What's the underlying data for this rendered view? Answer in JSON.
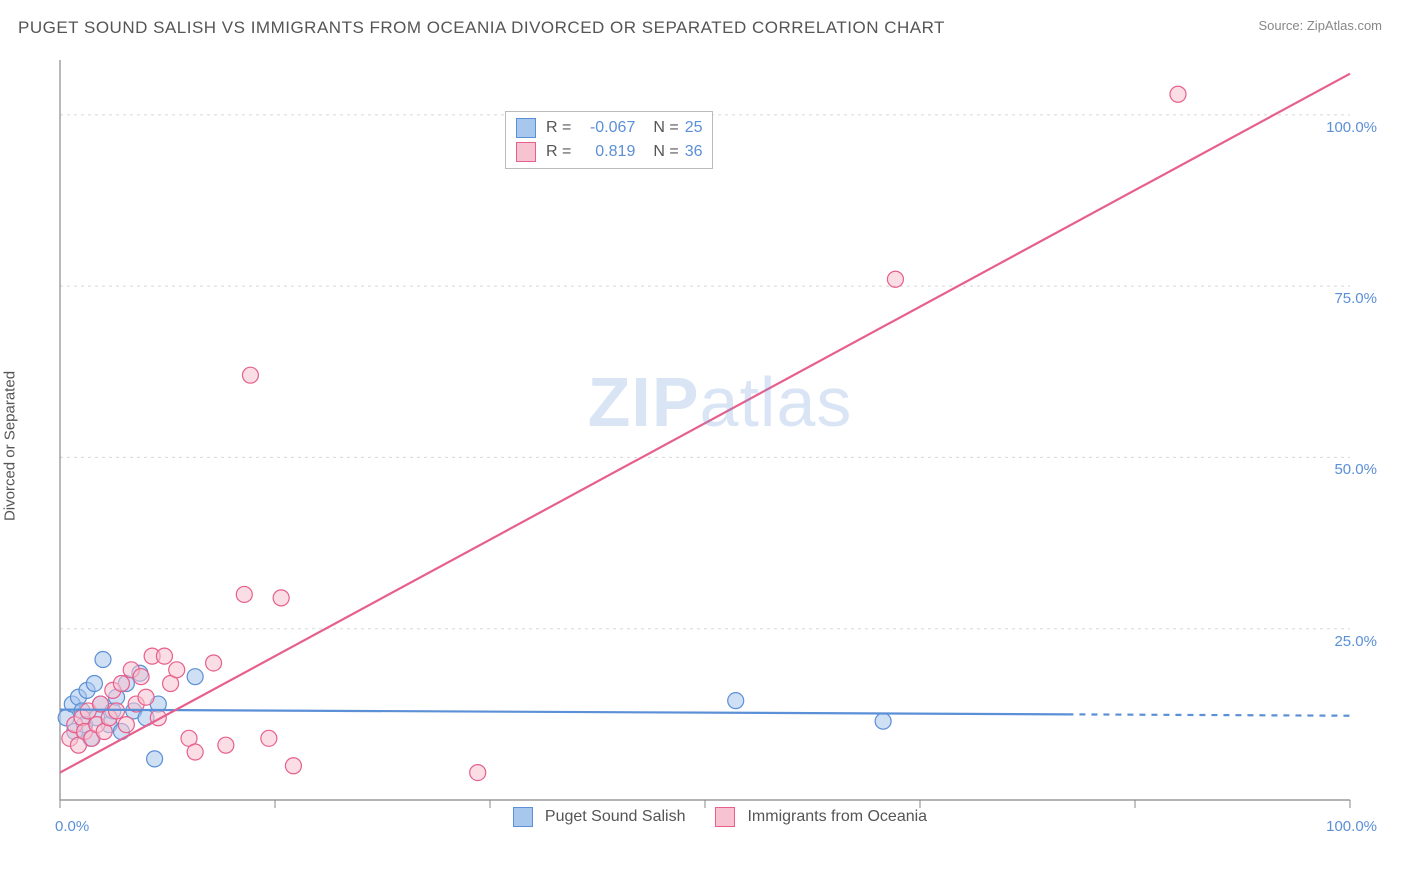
{
  "title": "PUGET SOUND SALISH VS IMMIGRANTS FROM OCEANIA DIVORCED OR SEPARATED CORRELATION CHART",
  "source": "Source: ZipAtlas.com",
  "y_axis_label": "Divorced or Separated",
  "watermark_bold": "ZIP",
  "watermark_light": "atlas",
  "chart": {
    "type": "scatter",
    "xlim": [
      0,
      105
    ],
    "ylim": [
      0,
      108
    ],
    "x_ticks": [
      0,
      100
    ],
    "x_tick_labels": [
      "0.0%",
      "100.0%"
    ],
    "y_ticks": [
      25,
      50,
      75,
      100
    ],
    "y_tick_labels": [
      "25.0%",
      "50.0%",
      "75.0%",
      "100.0%"
    ],
    "grid_color": "#d8d8d8",
    "axis_color": "#888888",
    "background": "#ffffff",
    "marker_radius": 8,
    "marker_stroke_width": 1.2,
    "line_width": 2.2,
    "series": [
      {
        "name": "Puget Sound Salish",
        "color_fill": "#a8c7ec",
        "color_stroke": "#5b8fd6",
        "R": "-0.067",
        "N": "25",
        "regression": {
          "x1": 0,
          "y1": 13.2,
          "x2": 82,
          "y2": 12.5,
          "dashed_x2": 105,
          "dashed_y2": 12.3
        },
        "points": [
          [
            0.5,
            12
          ],
          [
            1,
            14
          ],
          [
            1.2,
            10
          ],
          [
            1.5,
            15
          ],
          [
            1.8,
            13
          ],
          [
            2,
            11
          ],
          [
            2.2,
            16
          ],
          [
            2.5,
            9
          ],
          [
            2.8,
            17
          ],
          [
            3,
            12
          ],
          [
            3.3,
            14
          ],
          [
            3.5,
            20.5
          ],
          [
            4,
            11
          ],
          [
            4.3,
            13
          ],
          [
            4.6,
            15
          ],
          [
            5,
            10
          ],
          [
            5.4,
            17
          ],
          [
            6,
            13
          ],
          [
            6.5,
            18.5
          ],
          [
            7,
            12
          ],
          [
            7.7,
            6
          ],
          [
            8,
            14
          ],
          [
            11,
            18
          ],
          [
            55,
            14.5
          ],
          [
            67,
            11.5
          ]
        ]
      },
      {
        "name": "Immigrants from Oceania",
        "color_fill": "#f7c3d0",
        "color_stroke": "#e75f8c",
        "R": "0.819",
        "N": "36",
        "regression": {
          "x1": 0,
          "y1": 4,
          "x2": 105,
          "y2": 106
        },
        "points": [
          [
            0.8,
            9
          ],
          [
            1.2,
            11
          ],
          [
            1.5,
            8
          ],
          [
            1.8,
            12
          ],
          [
            2,
            10
          ],
          [
            2.3,
            13
          ],
          [
            2.6,
            9
          ],
          [
            3,
            11
          ],
          [
            3.3,
            14
          ],
          [
            3.6,
            10
          ],
          [
            4,
            12
          ],
          [
            4.3,
            16
          ],
          [
            4.6,
            13
          ],
          [
            5,
            17
          ],
          [
            5.4,
            11
          ],
          [
            5.8,
            19
          ],
          [
            6.2,
            14
          ],
          [
            6.6,
            18
          ],
          [
            7,
            15
          ],
          [
            7.5,
            21
          ],
          [
            8,
            12
          ],
          [
            8.5,
            21
          ],
          [
            9,
            17
          ],
          [
            9.5,
            19
          ],
          [
            10.5,
            9
          ],
          [
            11,
            7
          ],
          [
            12.5,
            20
          ],
          [
            13.5,
            8
          ],
          [
            15,
            30
          ],
          [
            17,
            9
          ],
          [
            18,
            29.5
          ],
          [
            19,
            5
          ],
          [
            34,
            4
          ],
          [
            15.5,
            62
          ],
          [
            68,
            76
          ],
          [
            91,
            103
          ]
        ]
      }
    ]
  },
  "stats_box": {
    "r_label": "R =",
    "n_label": "N ="
  },
  "legend": {
    "items": [
      {
        "label": "Puget Sound Salish",
        "fill": "#a8c7ec",
        "stroke": "#5b8fd6"
      },
      {
        "label": "Immigrants from Oceania",
        "fill": "#f7c3d0",
        "stroke": "#e75f8c"
      }
    ]
  }
}
